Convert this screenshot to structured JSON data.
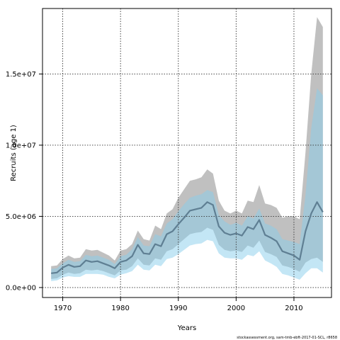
{
  "chart_data": {
    "type": "line",
    "xlabel": "Years",
    "ylabel": "Recruits (age 1)",
    "footnote": "stockassessment.org, sam-tmb-ebft-2017-01-SCL, r8658",
    "xlim": [
      1966.5,
      2016.5
    ],
    "ylim": [
      -700000,
      19600000
    ],
    "x_ticks": [
      {
        "value": 1970,
        "label": "1970"
      },
      {
        "value": 1980,
        "label": "1980"
      },
      {
        "value": 1990,
        "label": "1990"
      },
      {
        "value": 2000,
        "label": "2000"
      },
      {
        "value": 2010,
        "label": "2010"
      }
    ],
    "y_ticks": [
      {
        "value": 0,
        "label": "0.0e+00"
      },
      {
        "value": 5000000,
        "label": "5.0e+06"
      },
      {
        "value": 10000000,
        "label": "1.0e+07"
      },
      {
        "value": 15000000,
        "label": "1.5e+07"
      }
    ],
    "grid": true,
    "colors": {
      "estimate": "#5f7f93",
      "ci_estimate": "#bdbdbd",
      "ci_other": "#87ceeb"
    },
    "series": [
      {
        "role": "estimate",
        "x": [
          1968,
          1969,
          1970,
          1971,
          1972,
          1973,
          1974,
          1975,
          1976,
          1977,
          1978,
          1979,
          1980,
          1981,
          1982,
          1983,
          1984,
          1985,
          1986,
          1987,
          1988,
          1989,
          1990,
          1991,
          1992,
          1993,
          1994,
          1995,
          1996,
          1997,
          1998,
          1999,
          2000,
          2001,
          2002,
          2003,
          2004,
          2005,
          2006,
          2007,
          2008,
          2009,
          2010,
          2011,
          2012,
          2013,
          2014,
          2015
        ],
        "y": [
          1000000,
          1050000,
          1400000,
          1600000,
          1450000,
          1500000,
          1900000,
          1800000,
          1850000,
          1700000,
          1550000,
          1350000,
          1800000,
          1900000,
          2200000,
          3000000,
          2400000,
          2350000,
          3050000,
          2900000,
          3750000,
          3950000,
          4450000,
          4900000,
          5400000,
          5500000,
          5600000,
          6000000,
          5800000,
          4300000,
          3850000,
          3700000,
          3800000,
          3650000,
          4250000,
          4100000,
          4750000,
          3700000,
          3500000,
          3250000,
          2550000,
          2400000,
          2250000,
          1950000,
          3950000,
          5200000,
          6000000,
          5300000
        ]
      }
    ],
    "bands": [
      {
        "role": "ci_estimate",
        "x": [
          1968,
          1969,
          1970,
          1971,
          1972,
          1973,
          1974,
          1975,
          1976,
          1977,
          1978,
          1979,
          1980,
          1981,
          1982,
          1983,
          1984,
          1985,
          1986,
          1987,
          1988,
          1989,
          1990,
          1991,
          1992,
          1993,
          1994,
          1995,
          1996,
          1997,
          1998,
          1999,
          2000,
          2001,
          2002,
          2003,
          2004,
          2005,
          2006,
          2007,
          2008,
          2009,
          2010,
          2011,
          2012,
          2013,
          2014,
          2015
        ],
        "lower": [
          600000,
          650000,
          900000,
          1050000,
          950000,
          1000000,
          1250000,
          1200000,
          1250000,
          1150000,
          1000000,
          850000,
          1200000,
          1250000,
          1500000,
          2050000,
          1600000,
          1550000,
          2050000,
          1950000,
          2550000,
          2700000,
          3050000,
          3400000,
          3750000,
          3850000,
          3900000,
          4200000,
          4050000,
          3000000,
          2650000,
          2550000,
          2600000,
          2500000,
          2950000,
          2800000,
          3300000,
          2500000,
          2350000,
          2150000,
          1550000,
          1450000,
          1300000,
          1100000,
          1750000,
          2000000,
          2100000,
          1800000
        ],
        "upper": [
          1500000,
          1550000,
          2000000,
          2250000,
          2050000,
          2100000,
          2700000,
          2600000,
          2650000,
          2450000,
          2250000,
          1900000,
          2600000,
          2700000,
          3050000,
          4000000,
          3400000,
          3300000,
          4350000,
          4100000,
          5200000,
          5500000,
          6300000,
          6900000,
          7500000,
          7600000,
          7750000,
          8300000,
          8000000,
          6100000,
          5400000,
          5200000,
          5400000,
          5200000,
          6100000,
          6000000,
          7200000,
          5900000,
          5800000,
          5600000,
          4900000,
          5000000,
          5000000,
          4800000,
          9500000,
          15000000,
          19000000,
          18300000
        ]
      },
      {
        "role": "ci_other",
        "x": [
          1968,
          1969,
          1970,
          1971,
          1972,
          1973,
          1974,
          1975,
          1976,
          1977,
          1978,
          1979,
          1980,
          1981,
          1982,
          1983,
          1984,
          1985,
          1986,
          1987,
          1988,
          1989,
          1990,
          1991,
          1992,
          1993,
          1994,
          1995,
          1996,
          1997,
          1998,
          1999,
          2000,
          2001,
          2002,
          2003,
          2004,
          2005,
          2006,
          2007,
          2008,
          2009,
          2010,
          2011,
          2012,
          2013,
          2014,
          2015
        ],
        "lower": [
          450000,
          500000,
          700000,
          800000,
          750000,
          750000,
          950000,
          950000,
          950000,
          900000,
          750000,
          650000,
          900000,
          1000000,
          1150000,
          1600000,
          1250000,
          1200000,
          1600000,
          1500000,
          2000000,
          2100000,
          2350000,
          2650000,
          2950000,
          3050000,
          3100000,
          3350000,
          3250000,
          2400000,
          2100000,
          2050000,
          2050000,
          1950000,
          2300000,
          2200000,
          2550000,
          1900000,
          1700000,
          1450000,
          950000,
          850000,
          700000,
          550000,
          1000000,
          1350000,
          1350000,
          1050000
        ],
        "upper": [
          1300000,
          1350000,
          1700000,
          1950000,
          1800000,
          1850000,
          2300000,
          2200000,
          2250000,
          2100000,
          1950000,
          1650000,
          2200000,
          2300000,
          2700000,
          3550000,
          2950000,
          2900000,
          3750000,
          3600000,
          4500000,
          4800000,
          5350000,
          5850000,
          6300000,
          6450000,
          6550000,
          6850000,
          6700000,
          5100000,
          4650000,
          4400000,
          4550000,
          4350000,
          5000000,
          4850000,
          5550000,
          4500000,
          4350000,
          4100000,
          3400000,
          3300000,
          3200000,
          3050000,
          6500000,
          11200000,
          14000000,
          13500000
        ]
      }
    ]
  }
}
